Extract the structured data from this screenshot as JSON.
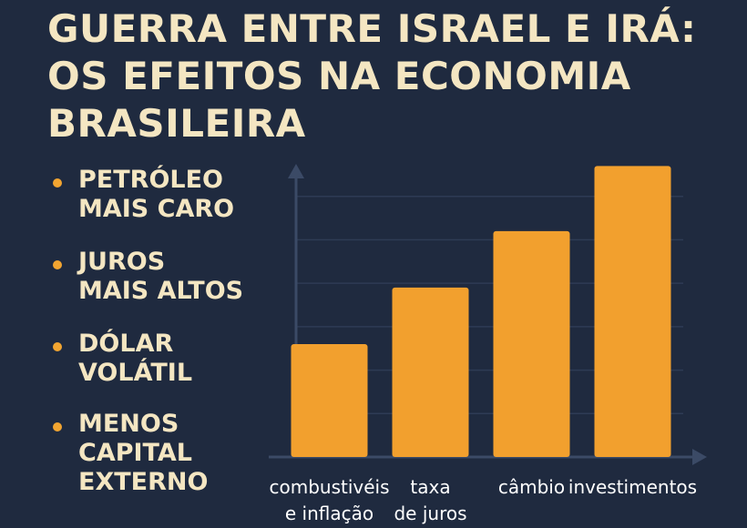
{
  "title_lines": [
    "GUERRA ENTRE ISRAEL E IRÁ:",
    "OS EFEITOS NA ECONOMIA",
    "BRASILEIRA"
  ],
  "bullets": [
    {
      "label": "PETRÓLEO\nMAIS CARO"
    },
    {
      "label": "JUROS\nMAIS ALTOS"
    },
    {
      "label": "DÓLAR\nVOLÁTIL"
    },
    {
      "label": "MENOS\nCAPITAL\nEXTERNO"
    }
  ],
  "colors": {
    "background": "#1f2a3f",
    "bar": "#f2a02e",
    "text": "#f4e6c2",
    "axis": "#3b4a66",
    "bullet": "#f2a531"
  },
  "chart_data": {
    "type": "bar",
    "categories": [
      [
        "combustivéis",
        "e inflação"
      ],
      [
        "taxa",
        "de juros"
      ],
      [
        "câmbio"
      ],
      [
        "investimentos"
      ]
    ],
    "values": [
      26,
      39,
      52,
      67
    ],
    "ylim": [
      0,
      70
    ],
    "grid": true,
    "xlabel": "",
    "ylabel": ""
  }
}
